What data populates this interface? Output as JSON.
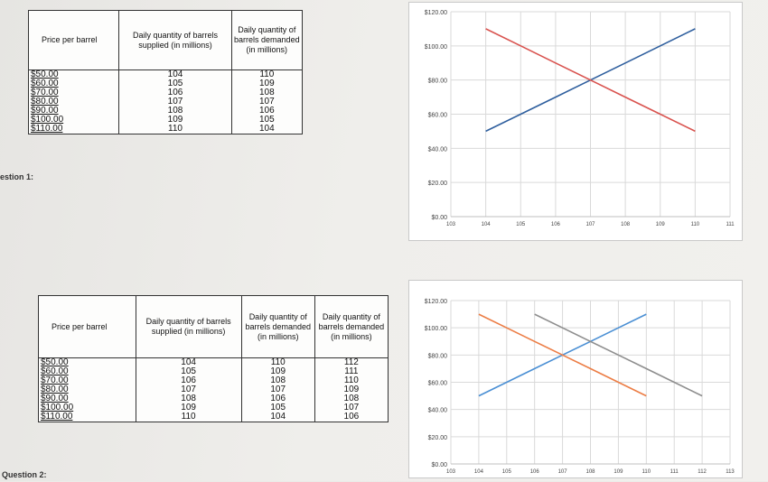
{
  "q1": {
    "label": "estion 1:",
    "table": {
      "headers": [
        "Price per barrel",
        "Daily quantity of barrels supplied (in millions)",
        "Daily quantity of barrels demanded (in millions)"
      ],
      "prices": [
        "$50.00",
        "$60.00",
        "$70.00",
        "$80.00",
        "$90.00",
        "$100.00",
        "$110.00"
      ],
      "supplied": [
        "104",
        "105",
        "106",
        "107",
        "108",
        "109",
        "110"
      ],
      "demanded": [
        "110",
        "109",
        "108",
        "107",
        "106",
        "105",
        "104"
      ]
    }
  },
  "q2": {
    "label": "Question 2:",
    "table": {
      "headers": [
        "Price per barrel",
        "Daily quantity of barrels supplied (in millions)",
        "Daily quantity of barrels demanded (in millions)",
        "Daily quantity of barrels demanded (in millions)"
      ],
      "prices": [
        "$50.00",
        "$60.00",
        "$70.00",
        "$80.00",
        "$90.00",
        "$100.00",
        "$110.00"
      ],
      "supplied": [
        "104",
        "105",
        "106",
        "107",
        "108",
        "109",
        "110"
      ],
      "demanded": [
        "110",
        "109",
        "108",
        "107",
        "106",
        "105",
        "104"
      ],
      "demanded_new": [
        "112",
        "111",
        "110",
        "109",
        "108",
        "107",
        "106"
      ]
    }
  },
  "chart_data": [
    {
      "type": "line",
      "title": "",
      "xlabel": "",
      "ylabel": "",
      "x_ticks": [
        "103",
        "104",
        "105",
        "106",
        "107",
        "108",
        "109",
        "110",
        "111"
      ],
      "y_ticks": [
        "$0.00",
        "$20.00",
        "$40.00",
        "$60.00",
        "$80.00",
        "$100.00",
        "$120.00"
      ],
      "xlim": [
        103,
        111
      ],
      "ylim": [
        0,
        120
      ],
      "grid": true,
      "series": [
        {
          "color": "#2f5f9e",
          "x": [
            104,
            105,
            106,
            107,
            108,
            109,
            110
          ],
          "y": [
            50,
            60,
            70,
            80,
            90,
            100,
            110
          ]
        },
        {
          "color": "#d9534f",
          "x": [
            104,
            105,
            106,
            107,
            108,
            109,
            110
          ],
          "y": [
            110,
            100,
            90,
            80,
            70,
            60,
            50
          ]
        }
      ]
    },
    {
      "type": "line",
      "title": "",
      "xlabel": "",
      "ylabel": "",
      "x_ticks": [
        "103",
        "104",
        "105",
        "106",
        "107",
        "108",
        "109",
        "110",
        "111",
        "112",
        "113"
      ],
      "y_ticks": [
        "$0.00",
        "$20.00",
        "$40.00",
        "$60.00",
        "$80.00",
        "$100.00",
        "$120.00"
      ],
      "xlim": [
        103,
        113
      ],
      "ylim": [
        0,
        120
      ],
      "grid": true,
      "series": [
        {
          "color": "#4a8fd4",
          "x": [
            104,
            105,
            106,
            107,
            108,
            109,
            110
          ],
          "y": [
            50,
            60,
            70,
            80,
            90,
            100,
            110
          ]
        },
        {
          "color": "#ec7d45",
          "x": [
            104,
            105,
            106,
            107,
            108,
            109,
            110
          ],
          "y": [
            110,
            100,
            90,
            80,
            70,
            60,
            50
          ]
        },
        {
          "color": "#8e8e8e",
          "x": [
            106,
            107,
            108,
            109,
            110,
            111,
            112
          ],
          "y": [
            110,
            100,
            90,
            80,
            70,
            60,
            50
          ]
        }
      ]
    }
  ]
}
